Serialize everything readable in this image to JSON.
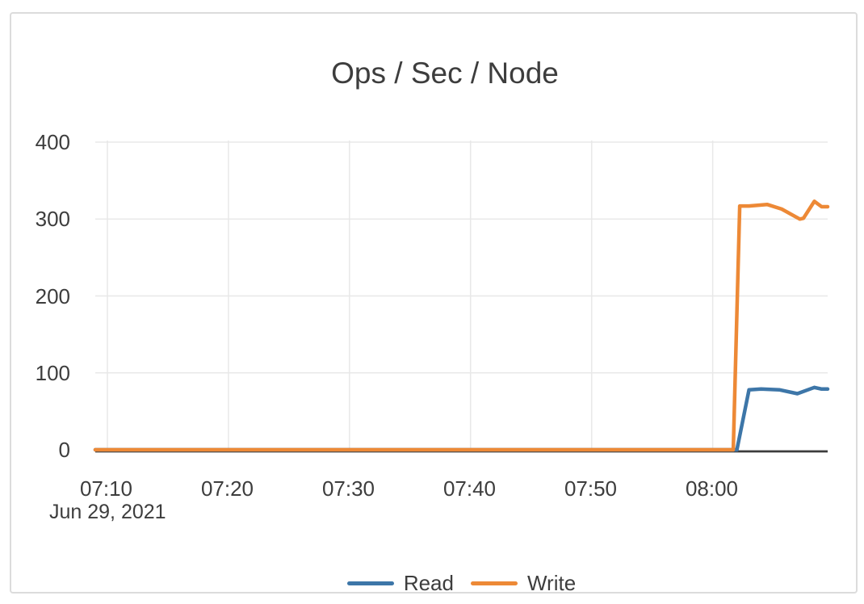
{
  "card": {
    "title": "Ops / Sec / Node"
  },
  "x_axis": {
    "ticks": [
      "07:10",
      "07:20",
      "07:30",
      "07:40",
      "07:50",
      "08:00"
    ],
    "date_label": "Jun 29, 2021"
  },
  "y_axis": {
    "ticks": [
      "400",
      "300",
      "200",
      "100",
      "0"
    ]
  },
  "legend": [
    {
      "label": "Read",
      "color": "#3d76a8"
    },
    {
      "label": "Write",
      "color": "#ed8936"
    }
  ],
  "colors": {
    "read": "#3d76a8",
    "write": "#ed8936",
    "grid": "#e8e8e8",
    "axis": "#3c3c3c",
    "text": "#3d3d3d",
    "card_border": "#dcdcdc",
    "background": "#ffffff"
  },
  "chart_data": {
    "type": "line",
    "title": "Ops / Sec / Node",
    "date": "Jun 29, 2021",
    "xlabel": "",
    "ylabel": "",
    "x_range": [
      "07:09:00",
      "08:09:30"
    ],
    "y_range": [
      0,
      400
    ],
    "x_tick_times": [
      "07:10:00",
      "07:20:00",
      "07:30:00",
      "07:40:00",
      "07:50:00",
      "08:00:00"
    ],
    "y_tick_values": [
      400,
      300,
      200,
      100,
      0
    ],
    "grid": true,
    "legend_position": "bottom",
    "series": [
      {
        "name": "Read",
        "color": "#3d76a8",
        "points": [
          [
            "07:09:00",
            0
          ],
          [
            "07:20:00",
            0
          ],
          [
            "07:30:00",
            0
          ],
          [
            "07:40:00",
            0
          ],
          [
            "07:50:00",
            0
          ],
          [
            "08:00:00",
            0
          ],
          [
            "08:02:00",
            0
          ],
          [
            "08:03:00",
            78
          ],
          [
            "08:04:00",
            79
          ],
          [
            "08:05:30",
            78
          ],
          [
            "08:07:00",
            73
          ],
          [
            "08:08:24",
            81
          ],
          [
            "08:09:00",
            79
          ],
          [
            "08:09:30",
            79
          ]
        ]
      },
      {
        "name": "Write",
        "color": "#ed8936",
        "points": [
          [
            "07:09:00",
            0
          ],
          [
            "07:20:00",
            0
          ],
          [
            "07:30:00",
            0
          ],
          [
            "07:40:00",
            0
          ],
          [
            "07:50:00",
            0
          ],
          [
            "08:00:00",
            0
          ],
          [
            "08:01:42",
            0
          ],
          [
            "08:02:14",
            317
          ],
          [
            "08:03:00",
            317
          ],
          [
            "08:04:30",
            319
          ],
          [
            "08:05:42",
            313
          ],
          [
            "08:07:12",
            300
          ],
          [
            "08:07:30",
            301
          ],
          [
            "08:08:24",
            323
          ],
          [
            "08:09:00",
            316
          ],
          [
            "08:09:30",
            316
          ]
        ]
      }
    ]
  }
}
